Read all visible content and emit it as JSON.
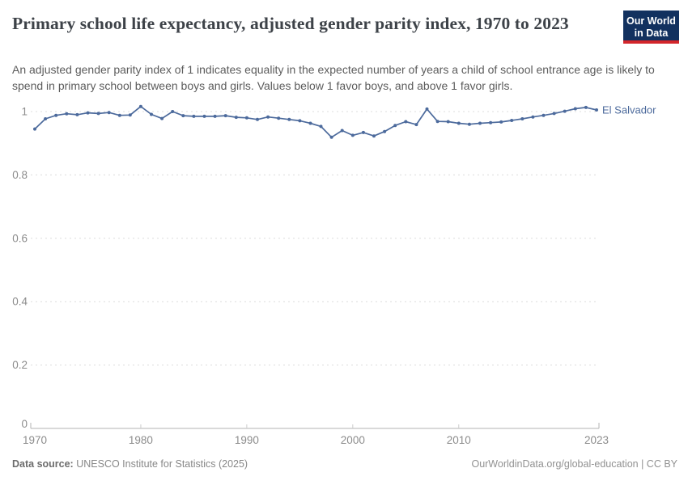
{
  "header": {
    "title": "Primary school life expectancy, adjusted gender parity index, 1970 to 2023",
    "subtitle": "An adjusted gender parity index of 1 indicates equality in the expected number of years a child of school entrance age is likely to spend in primary school between boys and girls. Values below 1 favor boys, and above 1 favor girls.",
    "logo": {
      "line1": "Our World",
      "line2": "in Data"
    }
  },
  "chart_data": {
    "type": "line",
    "title": "Primary school life expectancy, adjusted gender parity index",
    "xlabel": "",
    "ylabel": "",
    "xlim": [
      1970,
      2023
    ],
    "ylim": [
      0,
      1.05
    ],
    "xticks": [
      1970,
      1980,
      1990,
      2000,
      2010,
      2023
    ],
    "yticks": [
      0,
      0.2,
      0.4,
      0.6,
      0.8,
      1
    ],
    "grid": "horizontal-dashed",
    "legend_position": "end-of-line-label",
    "series": [
      {
        "name": "El Salvador",
        "color": "#4c6a9c",
        "x": [
          1970,
          1971,
          1972,
          1973,
          1974,
          1975,
          1976,
          1977,
          1978,
          1979,
          1980,
          1981,
          1982,
          1983,
          1984,
          1985,
          1986,
          1987,
          1988,
          1989,
          1990,
          1991,
          1992,
          1993,
          1994,
          1995,
          1996,
          1997,
          1998,
          1999,
          2000,
          2001,
          2002,
          2003,
          2004,
          2005,
          2006,
          2007,
          2008,
          2009,
          2010,
          2011,
          2012,
          2013,
          2014,
          2015,
          2016,
          2017,
          2018,
          2019,
          2020,
          2021,
          2022,
          2023
        ],
        "values": [
          0.945,
          0.977,
          0.988,
          0.993,
          0.99,
          0.996,
          0.994,
          0.997,
          0.988,
          0.989,
          1.016,
          0.991,
          0.978,
          1.0,
          0.987,
          0.985,
          0.985,
          0.985,
          0.987,
          0.982,
          0.98,
          0.975,
          0.983,
          0.979,
          0.975,
          0.971,
          0.963,
          0.953,
          0.919,
          0.94,
          0.925,
          0.934,
          0.923,
          0.937,
          0.956,
          0.968,
          0.959,
          1.008,
          0.969,
          0.968,
          0.963,
          0.96,
          0.963,
          0.965,
          0.967,
          0.972,
          0.977,
          0.983,
          0.988,
          0.994,
          1.001,
          1.009,
          1.013,
          1.005
        ]
      }
    ]
  },
  "footer": {
    "datasource_label": "Data source:",
    "datasource_value": "UNESCO Institute for Statistics (2025)",
    "attribution": "OurWorldinData.org/global-education | CC BY"
  },
  "colors": {
    "accent_line": "#4c6a9c",
    "logo_background": "#12315f",
    "logo_stripe": "#d3262b",
    "title_text": "#3d4248",
    "subtitle_text": "#5c5c5c",
    "tick_label": "#8c8c8c",
    "gridline": "#dcdcdc",
    "axis_line": "#b3b3b3"
  }
}
